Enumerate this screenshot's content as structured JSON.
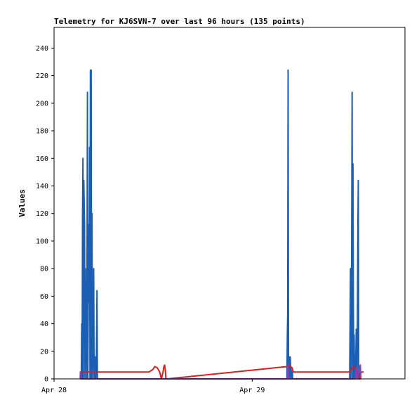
{
  "chart_data": {
    "type": "line",
    "title": "Telemetry for KJ6SVN-7 over last 96 hours (135 points)",
    "xlabel": "",
    "ylabel": "Values",
    "ylim": [
      0,
      255
    ],
    "yticks": [
      0,
      20,
      40,
      60,
      80,
      100,
      120,
      140,
      160,
      180,
      200,
      220,
      240
    ],
    "x_tick_labels": [
      {
        "label": "Apr 28",
        "hour": 0
      },
      {
        "label": "Apr 29",
        "hour": 24
      }
    ],
    "xlim_hours": [
      0,
      42.5
    ],
    "grid": false,
    "legend": "none",
    "colors": {
      "blue_series": "#1a5fb4",
      "red_series": "#e01b1b",
      "purple_series": "#8a3fb0",
      "black_series": "#000000"
    },
    "series": [
      {
        "color": "#1a5fb4",
        "x": [
          3.3,
          3.35,
          3.4,
          3.45,
          3.5,
          3.55,
          3.6,
          3.7,
          3.75,
          3.8,
          3.85,
          3.95,
          4.0,
          4.05,
          4.1,
          4.2,
          4.25,
          4.3,
          4.35,
          4.4,
          4.45,
          4.5,
          4.55,
          4.6,
          4.65,
          4.75,
          4.8,
          4.85,
          4.9,
          4.95,
          5.0,
          5.05,
          5.1,
          5.2,
          5.25,
          5.3,
          5.35,
          5.4,
          5.5,
          5.55,
          28.2,
          28.25,
          28.3,
          28.35,
          28.4,
          28.45,
          28.5,
          28.6,
          28.7,
          28.8,
          28.85,
          28.9,
          35.8,
          35.85,
          35.9,
          35.95,
          36.0,
          36.05,
          36.1,
          36.15,
          36.2,
          36.25,
          36.3,
          36.35,
          36.4,
          36.45,
          36.5,
          36.6,
          36.7,
          36.8,
          36.85,
          36.9,
          36.95,
          37.0,
          37.05,
          37.1,
          37.15
        ],
        "y": [
          0,
          40,
          0,
          120,
          160,
          0,
          144,
          112,
          0,
          80,
          48,
          0,
          104,
          208,
          0,
          112,
          56,
          168,
          0,
          224,
          0,
          224,
          0,
          120,
          0,
          32,
          80,
          0,
          16,
          0,
          0,
          16,
          0,
          64,
          0,
          0,
          0,
          0,
          0,
          0,
          0,
          32,
          48,
          224,
          0,
          16,
          0,
          16,
          0,
          0,
          8,
          0,
          0,
          40,
          80,
          0,
          32,
          104,
          208,
          0,
          156,
          52,
          0,
          32,
          0,
          0,
          0,
          36,
          0,
          108,
          144,
          0,
          8,
          0,
          0,
          0,
          0
        ]
      },
      {
        "color": "#e01b1b",
        "x": [
          3.2,
          3.4,
          3.5,
          5.5,
          11.5,
          12.0,
          12.2,
          12.5,
          12.8,
          13.0,
          13.2,
          13.3,
          13.4,
          13.5,
          13.55,
          13.6,
          13.65,
          13.7,
          28.3,
          28.5,
          28.8,
          29.0,
          29.5,
          30.0,
          35.8,
          36.0,
          36.2,
          36.5,
          36.8,
          37.0,
          37.2,
          37.5
        ],
        "y": [
          5,
          5,
          5,
          5,
          5,
          7,
          9,
          8,
          5,
          0,
          5,
          9,
          10,
          5,
          0,
          0,
          0,
          0,
          9,
          10,
          8,
          5,
          5,
          5,
          5,
          7,
          9,
          8,
          5,
          0,
          5,
          5
        ]
      },
      {
        "color": "#8a3fb0",
        "x": [
          3.15,
          3.2,
          3.25,
          28.25,
          28.3,
          28.35,
          28.4,
          36.5,
          36.6,
          36.7,
          37.1,
          37.15
        ],
        "y": [
          0,
          5,
          0,
          0,
          10,
          6,
          0,
          0,
          8,
          0,
          10,
          0
        ]
      },
      {
        "color": "#000000",
        "x": [
          0,
          42.5
        ],
        "y": [
          0,
          0
        ]
      }
    ]
  }
}
